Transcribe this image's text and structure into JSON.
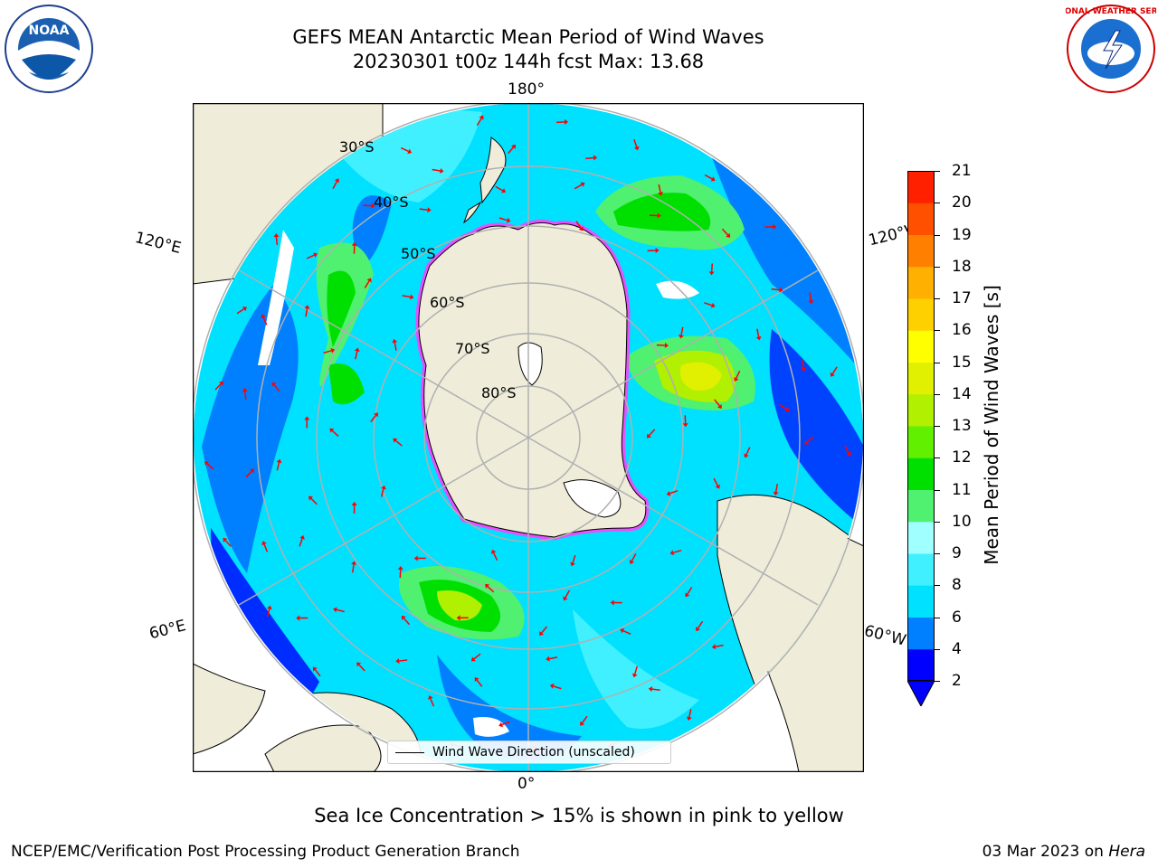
{
  "title": {
    "line1": "GEFS MEAN Antarctic Mean Period of Wind Waves",
    "line2": "20230301 t00z 144h fcst   Max: 13.68"
  },
  "map": {
    "projection": "south-polar-stereographic",
    "longitude_labels": {
      "top": "180°",
      "bottom": "0°",
      "upper_left": "120°E",
      "upper_right": "120°W",
      "lower_left": "60°E",
      "lower_right": "60°W"
    },
    "latitude_labels": [
      "30°S",
      "40°S",
      "50°S",
      "60°S",
      "70°S",
      "80°S"
    ],
    "legend_label": "Wind Wave Direction (unscaled)",
    "land_color": "#efedd9",
    "arrow_color": "#ff0000",
    "sea_ice_color": "#ff40ff"
  },
  "colorbar": {
    "label": "Mean Period of Wind Waves [s]",
    "ticks": [
      "2",
      "4",
      "6",
      "8",
      "9",
      "10",
      "11",
      "12",
      "13",
      "14",
      "15",
      "16",
      "17",
      "18",
      "19",
      "20",
      "21"
    ],
    "colors": [
      "#0000ff",
      "#0080ff",
      "#00e0ff",
      "#40f0ff",
      "#a0ffff",
      "#50f070",
      "#00e000",
      "#60f000",
      "#b0f000",
      "#e0f000",
      "#ffff00",
      "#ffd000",
      "#ffb000",
      "#ff8000",
      "#ff5000",
      "#ff2000"
    ],
    "under_color": "#0000ff"
  },
  "footnote": "Sea Ice Concentration > 15% is shown in pink to yellow",
  "credit": "NCEP/EMC/Verification Post Processing Product Generation Branch",
  "date_text": "03 Mar 2023 on",
  "date_machine": "Hera",
  "logos": {
    "left": "NOAA",
    "right": "NATIONAL WEATHER SERVICE"
  }
}
